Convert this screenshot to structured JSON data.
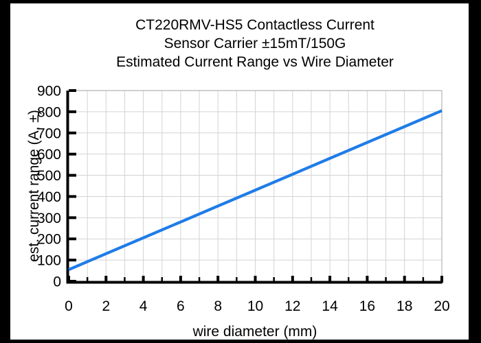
{
  "title": {
    "lines": [
      "CT220RMV-HS5 Contactless Current",
      "Sensor Carrier ±15mT/150G",
      "Estimated Current Range vs Wire Diameter"
    ]
  },
  "colors": {
    "frame": "#000000",
    "axis": "#000000",
    "text": "#000000",
    "gridline": "#d3d3d3",
    "plot_box_edge": "#b3b3b3",
    "line_blue": "#1f7ce8",
    "background": "#ffffff"
  },
  "chart_data": {
    "type": "line",
    "title": "CT220RMV-HS5 Contactless Current Sensor Carrier ±15mT/150G — Estimated Current Range vs Wire Diameter",
    "xlabel": "wire diameter (mm)",
    "ylabel": "est. current range (A, ±)",
    "xlim": [
      0,
      20
    ],
    "ylim": [
      0,
      900
    ],
    "x_major_ticks": [
      0,
      2,
      4,
      6,
      8,
      10,
      12,
      14,
      16,
      18,
      20
    ],
    "x_minor_tick_step": 1,
    "y_major_ticks": [
      0,
      100,
      200,
      300,
      400,
      500,
      600,
      700,
      800,
      900
    ],
    "grid": "on",
    "x_grid_step": 1,
    "y_grid_step": 100,
    "legend": "none",
    "series": [
      {
        "name": "estimated current range",
        "color": "#1f7ce8",
        "x": [
          0,
          2,
          4,
          6,
          8,
          10,
          12,
          14,
          16,
          18,
          20
        ],
        "y": [
          55,
          130,
          205,
          280,
          355,
          430,
          505,
          580,
          655,
          730,
          805
        ]
      }
    ]
  }
}
